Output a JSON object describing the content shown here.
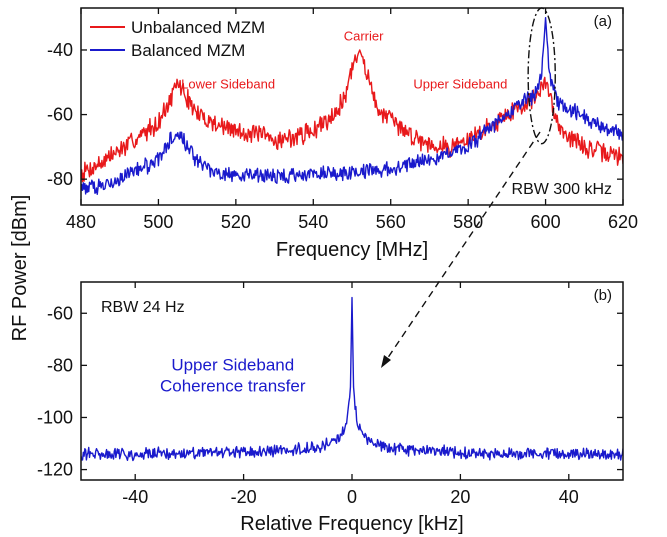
{
  "colors": {
    "red": "#e8191b",
    "blue": "#1a1acc",
    "axis": "#111111"
  },
  "shared_ylabel": "RF Power [dBm]",
  "chart_data": [
    {
      "panel": "(a)",
      "type": "line",
      "xlabel": "Frequency [MHz]",
      "xlim": [
        480,
        620
      ],
      "ylim": [
        -88,
        -27
      ],
      "xticks": [
        480,
        500,
        520,
        540,
        560,
        580,
        600,
        620
      ],
      "yticks": [
        -80,
        -60,
        -40
      ],
      "legend_placement": "top-left",
      "rbw": "RBW 300 kHz",
      "series": [
        {
          "name": "Unbalanced MZM",
          "color": "#e8191b",
          "points": [
            [
              480,
              -78
            ],
            [
              485,
              -75
            ],
            [
              490,
              -71
            ],
            [
              495,
              -67
            ],
            [
              500,
              -62
            ],
            [
              503,
              -56
            ],
            [
              505,
              -50
            ],
            [
              507,
              -54
            ],
            [
              510,
              -60
            ],
            [
              515,
              -63
            ],
            [
              520,
              -65
            ],
            [
              525,
              -66
            ],
            [
              530,
              -68
            ],
            [
              535,
              -67
            ],
            [
              540,
              -65
            ],
            [
              545,
              -60
            ],
            [
              548,
              -55
            ],
            [
              550,
              -46
            ],
            [
              552,
              -40
            ],
            [
              554,
              -47
            ],
            [
              556,
              -57
            ],
            [
              560,
              -62
            ],
            [
              565,
              -66
            ],
            [
              570,
              -69
            ],
            [
              575,
              -70
            ],
            [
              580,
              -68
            ],
            [
              585,
              -64
            ],
            [
              590,
              -60
            ],
            [
              594,
              -57
            ],
            [
              597,
              -55
            ],
            [
              599,
              -52
            ],
            [
              600,
              -50
            ],
            [
              601,
              -54
            ],
            [
              603,
              -62
            ],
            [
              606,
              -67
            ],
            [
              610,
              -70
            ],
            [
              615,
              -72
            ],
            [
              620,
              -73
            ]
          ]
        },
        {
          "name": "Balanced MZM",
          "color": "#1a1acc",
          "points": [
            [
              480,
              -83
            ],
            [
              485,
              -82
            ],
            [
              490,
              -80
            ],
            [
              495,
              -77
            ],
            [
              500,
              -74
            ],
            [
              503,
              -68
            ],
            [
              505,
              -65
            ],
            [
              507,
              -69
            ],
            [
              510,
              -75
            ],
            [
              515,
              -78
            ],
            [
              520,
              -79
            ],
            [
              525,
              -79
            ],
            [
              530,
              -79
            ],
            [
              535,
              -79
            ],
            [
              540,
              -78
            ],
            [
              545,
              -78
            ],
            [
              550,
              -78
            ],
            [
              555,
              -77
            ],
            [
              560,
              -77
            ],
            [
              565,
              -75
            ],
            [
              570,
              -74
            ],
            [
              575,
              -72
            ],
            [
              580,
              -70
            ],
            [
              585,
              -65
            ],
            [
              590,
              -60
            ],
            [
              594,
              -56
            ],
            [
              597,
              -54
            ],
            [
              599,
              -48
            ],
            [
              600,
              -30
            ],
            [
              601,
              -48
            ],
            [
              603,
              -56
            ],
            [
              606,
              -58
            ],
            [
              610,
              -61
            ],
            [
              615,
              -64
            ],
            [
              620,
              -66
            ]
          ]
        }
      ],
      "annotations": [
        {
          "text": "Lower Sideband",
          "x": 518,
          "y": -52,
          "color": "#e8191b"
        },
        {
          "text": "Carrier",
          "x": 553,
          "y": -37,
          "color": "#e8191b"
        },
        {
          "text": "Upper Sideband",
          "x": 578,
          "y": -52,
          "color": "#e8191b"
        }
      ],
      "highlight_ellipse": {
        "cx": 599,
        "cy": -48,
        "rx": 3.5,
        "ry": 21
      }
    },
    {
      "panel": "(b)",
      "type": "line",
      "xlabel": "Relative Frequency [kHz]",
      "xlim": [
        -50,
        50
      ],
      "ylim": [
        -124,
        -48
      ],
      "xticks": [
        -40,
        -20,
        0,
        20,
        40
      ],
      "yticks": [
        -120,
        -100,
        -80,
        -60
      ],
      "rbw": "RBW 24 Hz",
      "series": [
        {
          "name": "",
          "color": "#1a1acc",
          "points": [
            [
              -50,
              -114
            ],
            [
              -30,
              -114
            ],
            [
              -15,
              -113
            ],
            [
              -8,
              -112
            ],
            [
              -4,
              -110
            ],
            [
              -2,
              -107
            ],
            [
              -1,
              -103
            ],
            [
              -0.3,
              -90
            ],
            [
              0,
              -54
            ],
            [
              0.3,
              -90
            ],
            [
              1,
              -103
            ],
            [
              2,
              -107
            ],
            [
              4,
              -110
            ],
            [
              8,
              -112
            ],
            [
              15,
              -113
            ],
            [
              30,
              -114
            ],
            [
              50,
              -114
            ]
          ]
        }
      ],
      "annotations": [
        {
          "text": "Upper Sideband",
          "x": -22,
          "y": -82,
          "color": "#1a1acc"
        },
        {
          "text": "Coherence transfer",
          "x": -22,
          "y": -90,
          "color": "#1a1acc"
        }
      ]
    }
  ]
}
